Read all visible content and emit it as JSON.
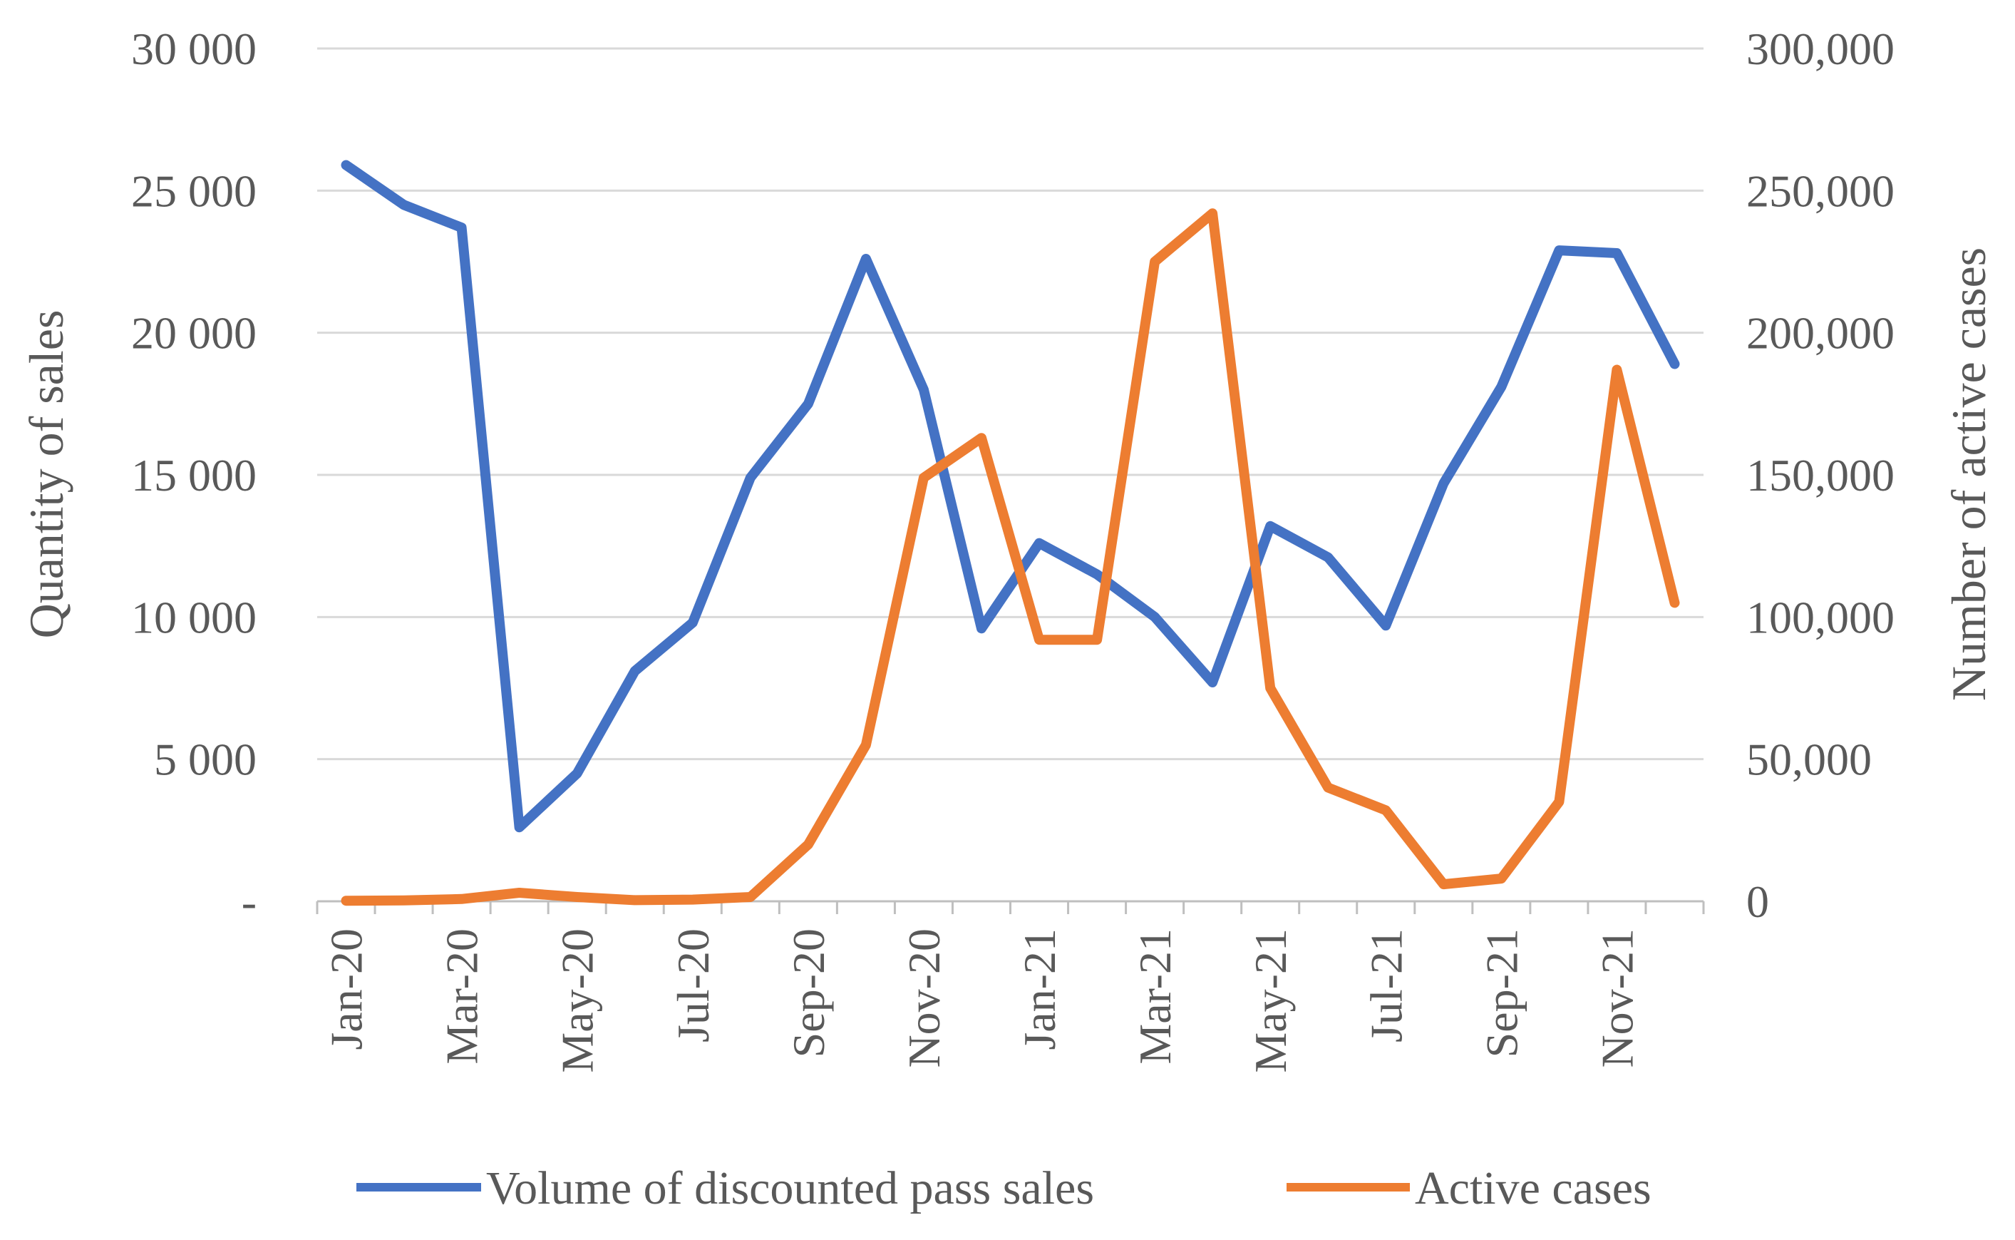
{
  "chart_data": {
    "type": "line",
    "title": "",
    "categories": [
      "Jan-20",
      "Feb-20",
      "Mar-20",
      "Apr-20",
      "May-20",
      "Jun-20",
      "Jul-20",
      "Aug-20",
      "Sep-20",
      "Oct-20",
      "Nov-20",
      "Dec-20",
      "Jan-21",
      "Feb-21",
      "Mar-21",
      "Apr-21",
      "May-21",
      "Jun-21",
      "Jul-21",
      "Aug-21",
      "Sep-21",
      "Oct-21",
      "Nov-21",
      "Dec-21"
    ],
    "x_tick_labels": [
      "Jan-20",
      "Mar-20",
      "May-20",
      "Jul-20",
      "Sep-20",
      "Nov-20",
      "Jan-21",
      "Mar-21",
      "May-21",
      "Jul-21",
      "Sep-21",
      "Nov-21"
    ],
    "y_left": {
      "label": "Quantity of sales",
      "ylim": [
        0,
        30000
      ],
      "ticks": [
        0,
        5000,
        10000,
        15000,
        20000,
        25000,
        30000
      ],
      "tick_labels": [
        "-",
        "5 000",
        "10 000",
        "15 000",
        "20 000",
        "25 000",
        "30 000"
      ]
    },
    "y_right": {
      "label": "Number of active cases",
      "ylim": [
        0,
        300000
      ],
      "ticks": [
        0,
        50000,
        100000,
        150000,
        200000,
        250000,
        300000
      ],
      "tick_labels": [
        "0",
        "50,000",
        "100,000",
        "150,000",
        "200,000",
        "250,000",
        "300,000"
      ]
    },
    "grid": true,
    "legend_position": "bottom",
    "series": [
      {
        "name": "Volume of discounted pass sales",
        "axis": "left",
        "color": "#4472C4",
        "values": [
          25900,
          24500,
          23700,
          2600,
          4500,
          8100,
          9800,
          14900,
          17500,
          22600,
          18000,
          9600,
          12600,
          11500,
          10000,
          7700,
          13200,
          12100,
          9700,
          14700,
          18100,
          22900,
          22800,
          18900
        ]
      },
      {
        "name": "Active cases",
        "axis": "right",
        "color": "#ED7D31",
        "values": [
          200,
          300,
          800,
          3000,
          1500,
          400,
          600,
          1500,
          20000,
          55000,
          149000,
          163000,
          92000,
          92000,
          225000,
          242000,
          75000,
          40000,
          32000,
          6000,
          8000,
          35000,
          187000,
          105000
        ]
      }
    ]
  }
}
